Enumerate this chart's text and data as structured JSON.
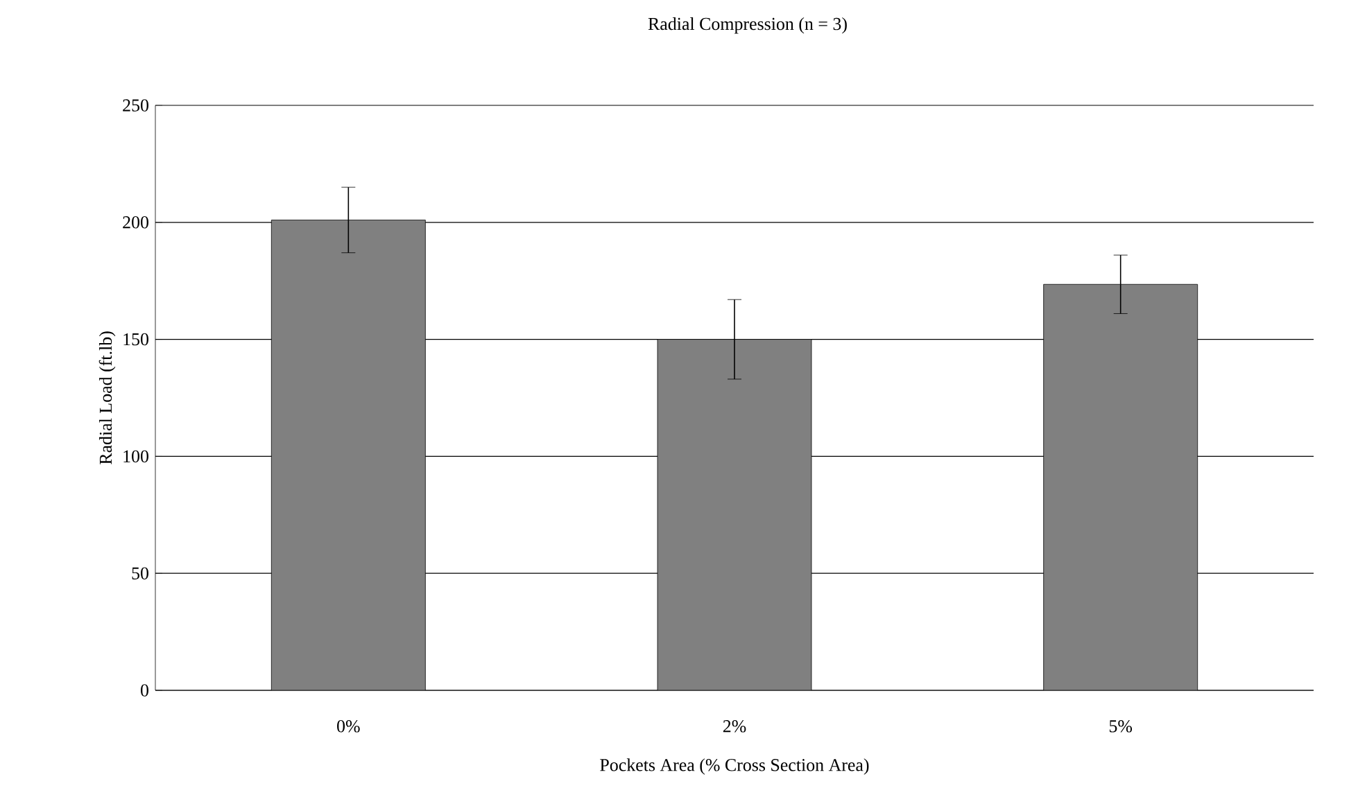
{
  "chart_data": {
    "type": "bar",
    "title": "Radial Compression (n = 3)",
    "xlabel": "Pockets Area (% Cross Section Area)",
    "ylabel": "Radial Load (ft.lb)",
    "categories": [
      "0%",
      "2%",
      "5%"
    ],
    "values": [
      201,
      150,
      173.5
    ],
    "errors": [
      14,
      17,
      12.5
    ],
    "color": "#808080",
    "ylim": [
      0,
      250
    ],
    "yticks": [
      0,
      50,
      100,
      150,
      200,
      250
    ],
    "grid": "y"
  }
}
